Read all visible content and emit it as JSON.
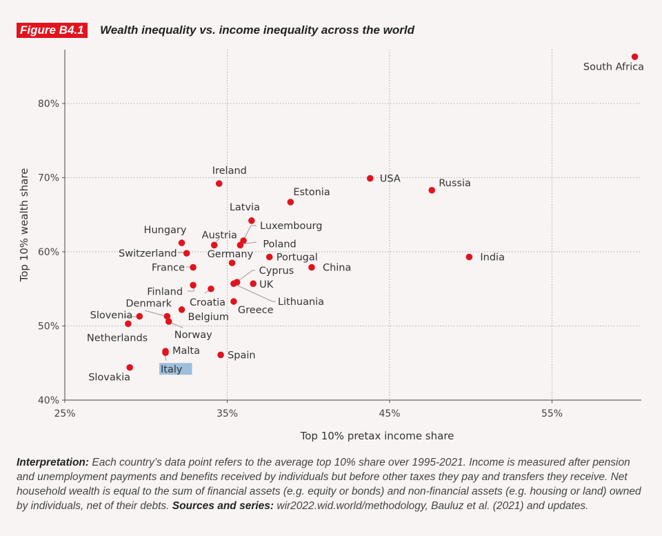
{
  "figure_tag": "Figure B4.1",
  "chart_data": {
    "type": "scatter",
    "title": "Wealth inequality vs. income inequality across the world",
    "xlabel": "Top 10% pretax income share",
    "ylabel": "Top 10% wealth share",
    "xlim": [
      25,
      62
    ],
    "ylim": [
      40,
      88
    ],
    "x_ticks": [
      25,
      35,
      45,
      55
    ],
    "x_tick_labels": [
      "25%",
      "35%",
      "45%",
      "55%"
    ],
    "y_ticks": [
      40,
      50,
      60,
      70,
      80
    ],
    "y_tick_labels": [
      "40%",
      "50%",
      "60%",
      "70%",
      "80%"
    ],
    "grid": true,
    "point_color": "#e1141e",
    "highlight_color": "#9dbfdc",
    "points": [
      {
        "label": "South Africa",
        "x": 60.1,
        "y": 86.3
      },
      {
        "label": "USA",
        "x": 43.8,
        "y": 69.9
      },
      {
        "label": "Russia",
        "x": 47.6,
        "y": 68.3
      },
      {
        "label": "India",
        "x": 49.9,
        "y": 59.3
      },
      {
        "label": "China",
        "x": 40.2,
        "y": 57.9
      },
      {
        "label": "Estonia",
        "x": 38.9,
        "y": 66.7
      },
      {
        "label": "Ireland",
        "x": 34.5,
        "y": 69.2
      },
      {
        "label": "Latvia",
        "x": 36.5,
        "y": 64.2
      },
      {
        "label": "Luxembourg",
        "x": 36.0,
        "y": 61.5
      },
      {
        "label": "Poland",
        "x": 35.8,
        "y": 60.9
      },
      {
        "label": "Austria",
        "x": 34.2,
        "y": 60.9
      },
      {
        "label": "Hungary",
        "x": 32.2,
        "y": 61.2
      },
      {
        "label": "Switzerland",
        "x": 32.5,
        "y": 59.8
      },
      {
        "label": "Germany",
        "x": 35.3,
        "y": 58.5
      },
      {
        "label": "Portugal",
        "x": 37.6,
        "y": 59.3
      },
      {
        "label": "France",
        "x": 32.9,
        "y": 57.9
      },
      {
        "label": "Cyprus",
        "x": 35.6,
        "y": 55.9
      },
      {
        "label": "Lithuania",
        "x": 35.4,
        "y": 55.7
      },
      {
        "label": "UK",
        "x": 36.6,
        "y": 55.7
      },
      {
        "label": "Finland",
        "x": 32.9,
        "y": 55.5
      },
      {
        "label": "Croatia",
        "x": 34.0,
        "y": 55.0
      },
      {
        "label": "Greece",
        "x": 35.4,
        "y": 53.3
      },
      {
        "label": "Belgium",
        "x": 32.2,
        "y": 52.2
      },
      {
        "label": "Denmark",
        "x": 31.3,
        "y": 51.3
      },
      {
        "label": "Norway",
        "x": 31.4,
        "y": 50.6
      },
      {
        "label": "Slovenia",
        "x": 29.6,
        "y": 51.3
      },
      {
        "label": "Netherlands",
        "x": 28.9,
        "y": 50.3
      },
      {
        "label": "Malta",
        "x": 31.2,
        "y": 46.6
      },
      {
        "label": "Italy",
        "x": 31.2,
        "y": 46.4,
        "highlighted": true
      },
      {
        "label": "Spain",
        "x": 34.6,
        "y": 46.1
      },
      {
        "label": "Slovakia",
        "x": 29.0,
        "y": 44.4
      }
    ]
  },
  "note": {
    "interp_label": "Interpretation:",
    "interp_text": " Each country’s data point refers to the average top 10% share over 1995-2021. Income is measured after pension and unemployment payments and benefits received by individuals but before other taxes they pay and transfers they receive. Net household wealth is equal to the sum of financial assets (e.g. equity or bonds) and non-financial assets (e.g. housing or land) owned by individuals, net of their debts. ",
    "sources_label": "Sources and series:",
    "sources_text": " wir2022.wid.world/methodology, Bauluz et al. (2021) and updates."
  }
}
